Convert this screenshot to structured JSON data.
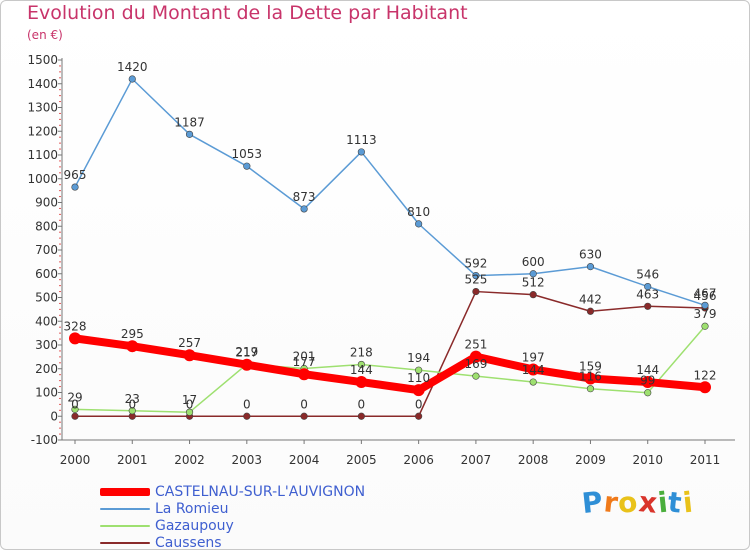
{
  "header": {
    "title": "Evolution du Montant de la Dette par Habitant",
    "subtitle": "(en €)"
  },
  "logo": {
    "letters": [
      "P",
      "r",
      "o",
      "x",
      "i",
      "t",
      "i"
    ],
    "colors": [
      "#2f8fd6",
      "#f07a1a",
      "#e9c21a",
      "#d9342b",
      "#4aae3c",
      "#2f8fd6",
      "#e9c21a"
    ]
  },
  "chart_data": {
    "type": "line",
    "x": [
      "2000",
      "2001",
      "2002",
      "2003",
      "2004",
      "2005",
      "2006",
      "2007",
      "2008",
      "2009",
      "2010",
      "2011"
    ],
    "ylim": [
      -100,
      1500
    ],
    "yticks": [
      "-100",
      "0",
      "100",
      "200",
      "300",
      "400",
      "500",
      "600",
      "700",
      "800",
      "900",
      "1000",
      "1100",
      "1200",
      "1300",
      "1400",
      "1500"
    ],
    "grid": false,
    "legend_position": "bottom-left",
    "series": [
      {
        "name": "CASTELNAU-SUR-L'AUVIGNON",
        "color": "#ff0000",
        "values": [
          328,
          295,
          257,
          217,
          177,
          144,
          110,
          251,
          197,
          159,
          144,
          122
        ],
        "labels": [
          "328",
          "295",
          "257",
          "217",
          "177",
          "144",
          "110",
          "251",
          "197",
          "159",
          "144",
          "122"
        ]
      },
      {
        "name": "La Romieu",
        "color": "#5b9bd5",
        "values": [
          965,
          1420,
          1187,
          1053,
          873,
          1113,
          810,
          592,
          600,
          630,
          546,
          467
        ],
        "labels": [
          "965",
          "1420",
          "1187",
          "1053",
          "873",
          "1113",
          "810",
          "592",
          "600",
          "630",
          "546",
          "467"
        ]
      },
      {
        "name": "Gazaupouy",
        "color": "#9ee070",
        "values": [
          29,
          23,
          17,
          219,
          201,
          218,
          194,
          169,
          144,
          116,
          99,
          379
        ],
        "labels": [
          "29",
          "23",
          "17",
          "219",
          "201",
          "218",
          "194",
          "169",
          "144",
          "116",
          "99",
          "379"
        ]
      },
      {
        "name": "Caussens",
        "color": "#8a2a2a",
        "values": [
          0,
          0,
          0,
          0,
          0,
          0,
          0,
          525,
          512,
          442,
          463,
          456
        ],
        "labels": [
          "0",
          "0",
          "0",
          "0",
          "0",
          "0",
          "0",
          "525",
          "512",
          "442",
          "463",
          "456"
        ]
      }
    ]
  }
}
